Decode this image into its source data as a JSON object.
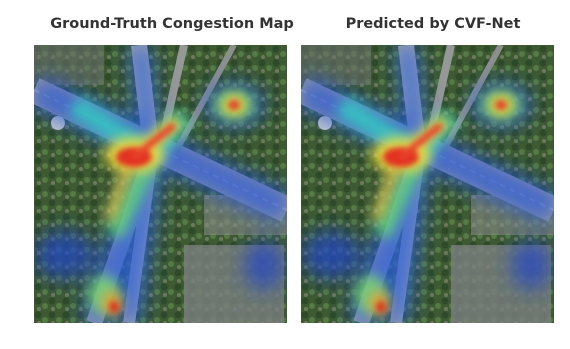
{
  "panels": [
    {
      "title": "Ground-Truth Congestion Map"
    },
    {
      "title": "Predicted by CVF-Net"
    }
  ]
}
